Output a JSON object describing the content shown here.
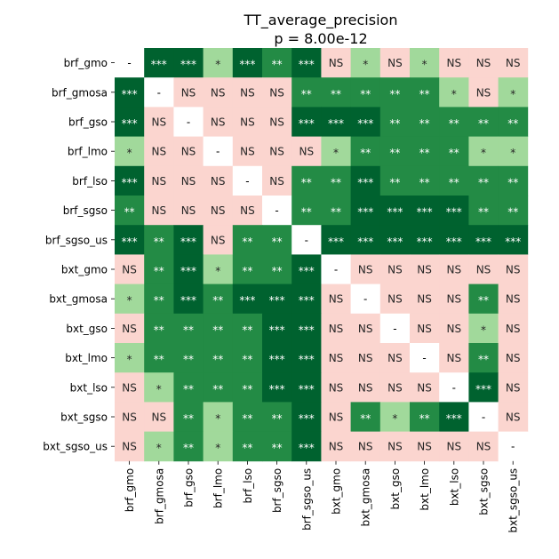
{
  "chart_data": {
    "type": "heatmap",
    "title": "TT_average_precision",
    "subtitle": "p = 8.00e-12",
    "row_labels": [
      "brf_gmo",
      "brf_gmosa",
      "brf_gso",
      "brf_lmo",
      "brf_lso",
      "brf_sgso",
      "brf_sgso_us",
      "bxt_gmo",
      "bxt_gmosa",
      "bxt_gso",
      "bxt_lmo",
      "bxt_lso",
      "bxt_sgso",
      "bxt_sgso_us"
    ],
    "col_labels": [
      "brf_gmo",
      "brf_gmosa",
      "brf_gso",
      "brf_lmo",
      "brf_lso",
      "brf_sgso",
      "brf_sgso_us",
      "bxt_gmo",
      "bxt_gmosa",
      "bxt_gso",
      "bxt_lmo",
      "bxt_lso",
      "bxt_sgso",
      "bxt_sgso_us"
    ],
    "cells": [
      [
        "-",
        "***",
        "***",
        "*",
        "***",
        "**",
        "***",
        "NS",
        "*",
        "NS",
        "*",
        "NS",
        "NS",
        "NS"
      ],
      [
        "***",
        "-",
        "NS",
        "NS",
        "NS",
        "NS",
        "**",
        "**",
        "**",
        "**",
        "**",
        "*",
        "NS",
        "*"
      ],
      [
        "***",
        "NS",
        "-",
        "NS",
        "NS",
        "NS",
        "***",
        "***",
        "***",
        "**",
        "**",
        "**",
        "**",
        "**"
      ],
      [
        "*",
        "NS",
        "NS",
        "-",
        "NS",
        "NS",
        "NS",
        "*",
        "**",
        "**",
        "**",
        "**",
        "*",
        "*"
      ],
      [
        "***",
        "NS",
        "NS",
        "NS",
        "-",
        "NS",
        "**",
        "**",
        "***",
        "**",
        "**",
        "**",
        "**",
        "**"
      ],
      [
        "**",
        "NS",
        "NS",
        "NS",
        "NS",
        "-",
        "**",
        "**",
        "***",
        "***",
        "***",
        "***",
        "**",
        "**"
      ],
      [
        "***",
        "**",
        "***",
        "NS",
        "**",
        "**",
        "-",
        "***",
        "***",
        "***",
        "***",
        "***",
        "***",
        "***"
      ],
      [
        "NS",
        "**",
        "***",
        "*",
        "**",
        "**",
        "***",
        "-",
        "NS",
        "NS",
        "NS",
        "NS",
        "NS",
        "NS"
      ],
      [
        "*",
        "**",
        "***",
        "**",
        "***",
        "***",
        "***",
        "NS",
        "-",
        "NS",
        "NS",
        "NS",
        "**",
        "NS"
      ],
      [
        "NS",
        "**",
        "**",
        "**",
        "**",
        "***",
        "***",
        "NS",
        "NS",
        "-",
        "NS",
        "NS",
        "*",
        "NS"
      ],
      [
        "*",
        "**",
        "**",
        "**",
        "**",
        "***",
        "***",
        "NS",
        "NS",
        "NS",
        "-",
        "NS",
        "**",
        "NS"
      ],
      [
        "NS",
        "*",
        "**",
        "**",
        "**",
        "***",
        "***",
        "NS",
        "NS",
        "NS",
        "NS",
        "-",
        "***",
        "NS"
      ],
      [
        "NS",
        "NS",
        "**",
        "*",
        "**",
        "**",
        "***",
        "NS",
        "**",
        "*",
        "**",
        "***",
        "-",
        "NS"
      ],
      [
        "NS",
        "*",
        "**",
        "*",
        "**",
        "**",
        "***",
        "NS",
        "NS",
        "NS",
        "NS",
        "NS",
        "NS",
        "-"
      ]
    ],
    "colors": {
      "-": "#ffffff",
      "NS": "#fbd5cf",
      "*": "#a1d99b",
      "**": "#238b45",
      "***": "#00622f"
    },
    "text_colors": {
      "-": "#000000",
      "NS": "#262626",
      "*": "#262626",
      "**": "#ffffff",
      "***": "#ffffff"
    }
  }
}
